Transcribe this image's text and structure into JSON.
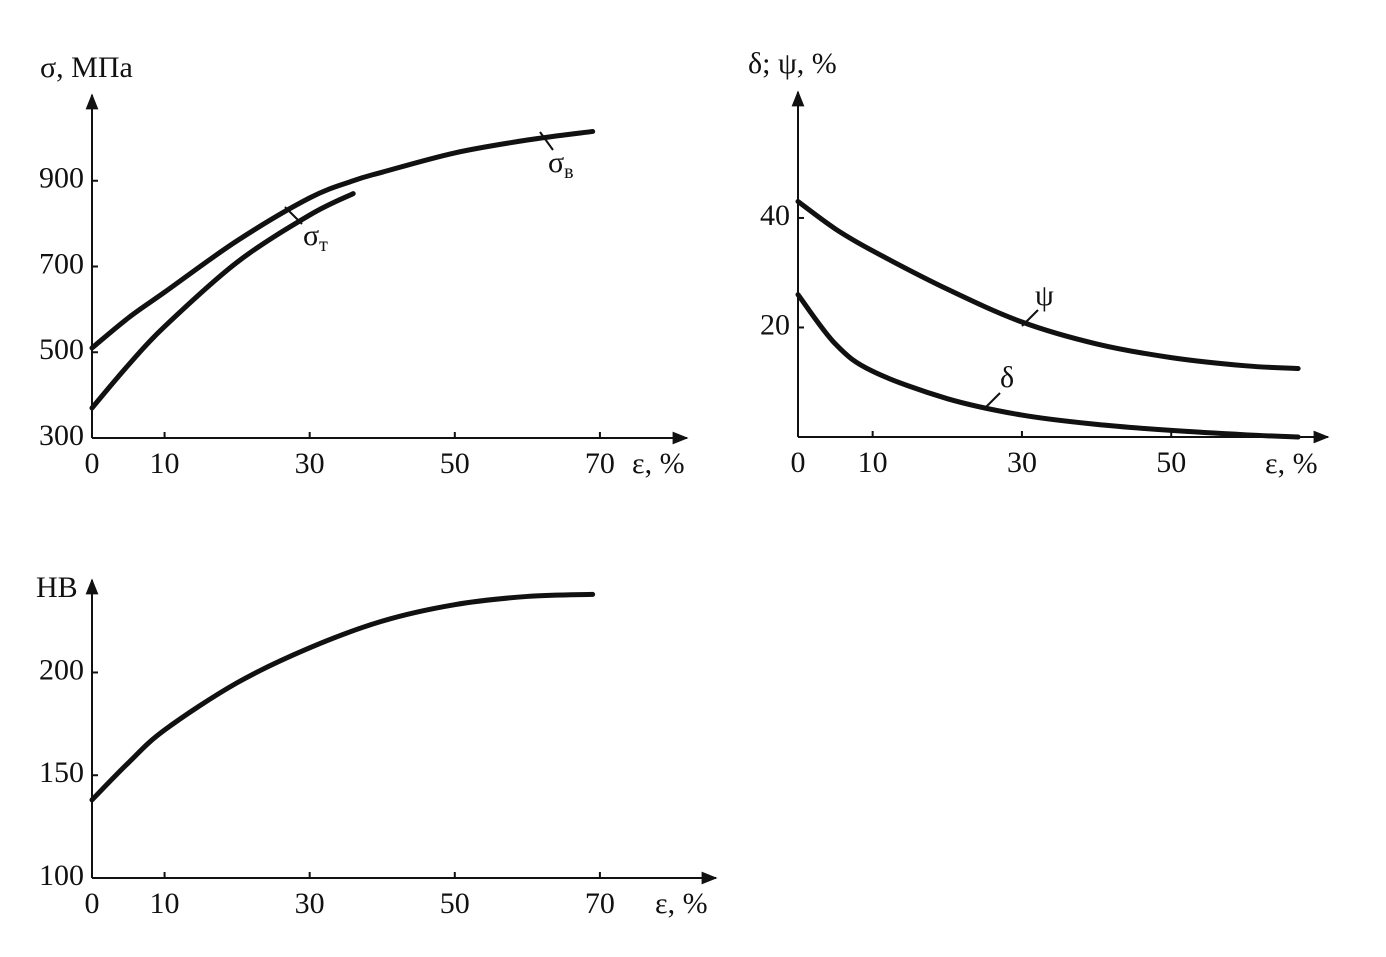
{
  "chart_data": [
    {
      "type": "line",
      "ylabel": "σ, МПа",
      "xlabel": "ε, %",
      "x": [
        0,
        5,
        10,
        20,
        30,
        36,
        40,
        50,
        60,
        69
      ],
      "series": [
        {
          "name": "σв",
          "color": "#111111",
          "values": [
            510,
            580,
            640,
            760,
            860,
            900,
            920,
            965,
            995,
            1015
          ]
        },
        {
          "name": "σт",
          "color": "#111111",
          "values": [
            370,
            470,
            560,
            710,
            820,
            870,
            null,
            null,
            null,
            null
          ]
        }
      ],
      "xlim": [
        0,
        82
      ],
      "xticks": [
        0,
        10,
        30,
        50,
        70
      ],
      "ylim": [
        300,
        1100
      ],
      "yticks": [
        300,
        500,
        700,
        900
      ]
    },
    {
      "type": "line",
      "ylabel": "δ; ψ, %",
      "xlabel": "ε, %",
      "x": [
        0,
        5,
        10,
        20,
        30,
        40,
        50,
        60,
        67
      ],
      "series": [
        {
          "name": "ψ",
          "color": "#111111",
          "values": [
            43,
            38,
            34,
            27,
            21,
            17,
            14.5,
            13,
            12.5
          ]
        },
        {
          "name": "δ",
          "color": "#111111",
          "values": [
            26,
            17,
            12,
            7,
            4,
            2.3,
            1.2,
            0.4,
            0
          ]
        }
      ],
      "xlim": [
        0,
        71
      ],
      "xticks": [
        0,
        10,
        30,
        50
      ],
      "ylim": [
        0,
        63
      ],
      "yticks": [
        20,
        40
      ]
    },
    {
      "type": "line",
      "ylabel": "HB",
      "xlabel": "ε, %",
      "x": [
        0,
        5,
        10,
        20,
        30,
        40,
        50,
        60,
        69
      ],
      "series": [
        {
          "name": null,
          "color": "#111111",
          "values": [
            138,
            156,
            172,
            195,
            212,
            225,
            233,
            237,
            238
          ]
        }
      ],
      "xlim": [
        0,
        86
      ],
      "xticks": [
        0,
        10,
        30,
        50,
        70
      ],
      "ylim": [
        100,
        245
      ],
      "yticks": [
        100,
        150,
        200
      ]
    }
  ]
}
